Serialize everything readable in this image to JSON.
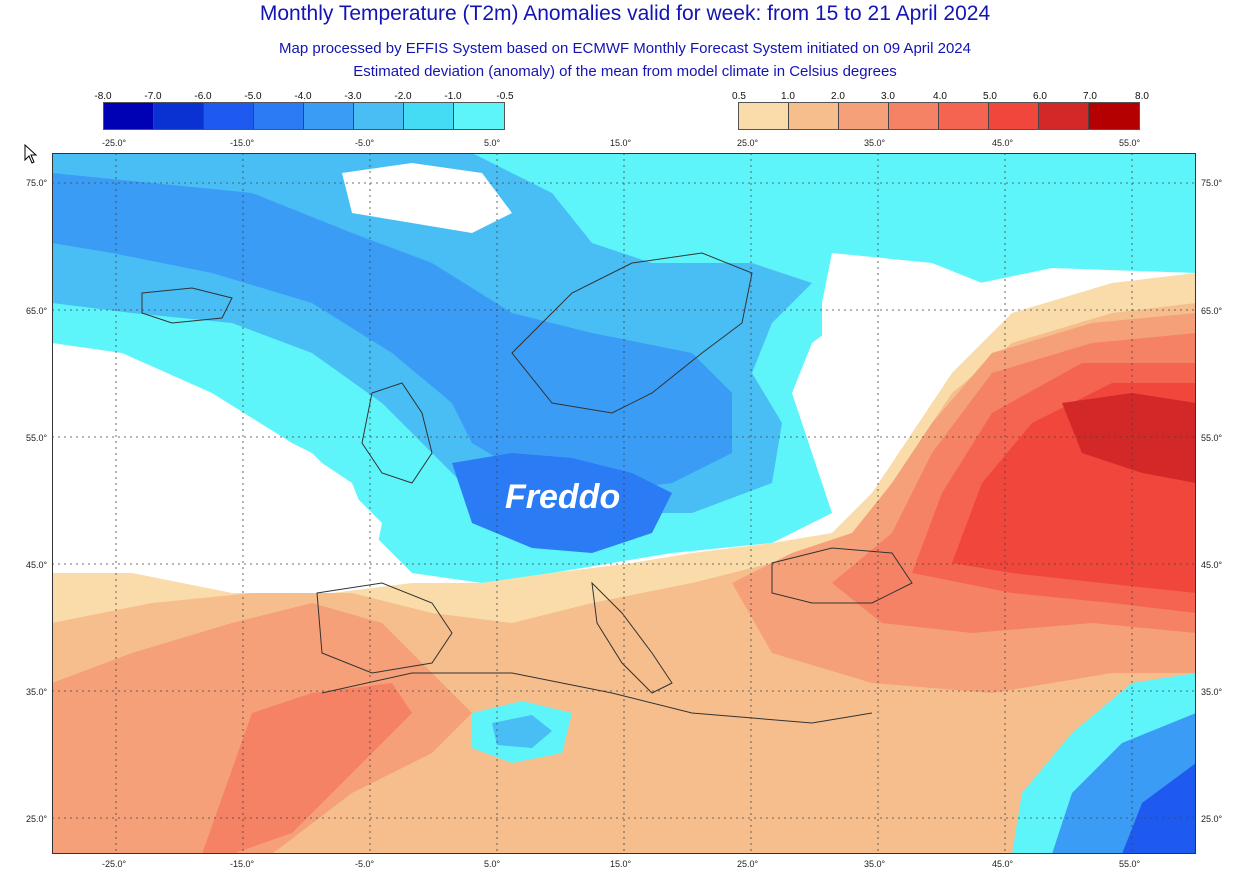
{
  "title": "Monthly Temperature (T2m) Anomalies valid for week: from 15 to 21 April 2024",
  "subtitle": "Map processed by EFFIS System based on ECMWF Monthly Forecast System initiated on 09 April 2024",
  "subtitle2": "Estimated deviation (anomaly) of the mean from model climate in Celsius degrees",
  "cold_scale": {
    "labels": [
      "-8.0",
      "-7.0",
      "-6.0",
      "-5.0",
      "-4.0",
      "-3.0",
      "-2.0",
      "-1.0",
      "-0.5"
    ],
    "colors": [
      "#0000b4",
      "#0a32d2",
      "#1e5af0",
      "#2b7bf5",
      "#3a9cf5",
      "#48bef5",
      "#44dcf5",
      "#5ef5fa"
    ]
  },
  "warm_scale": {
    "labels": [
      "0.5",
      "1.0",
      "2.0",
      "3.0",
      "4.0",
      "5.0",
      "6.0",
      "7.0",
      "8.0"
    ],
    "colors": [
      "#fadcaa",
      "#f5be8c",
      "#f5a078",
      "#f58264",
      "#f56450",
      "#f0463c",
      "#d22828",
      "#b40000"
    ]
  },
  "lon_labels": [
    "-25.0°",
    "-15.0°",
    "-5.0°",
    "5.0°",
    "15.0°",
    "25.0°",
    "35.0°",
    "45.0°",
    "55.0°"
  ],
  "lat_labels": [
    "75.0°",
    "65.0°",
    "55.0°",
    "45.0°",
    "35.0°",
    "25.0°"
  ],
  "annotation": "Freddo",
  "colors": {
    "title": "#1414b4",
    "ocean_white": "#ffffff"
  }
}
